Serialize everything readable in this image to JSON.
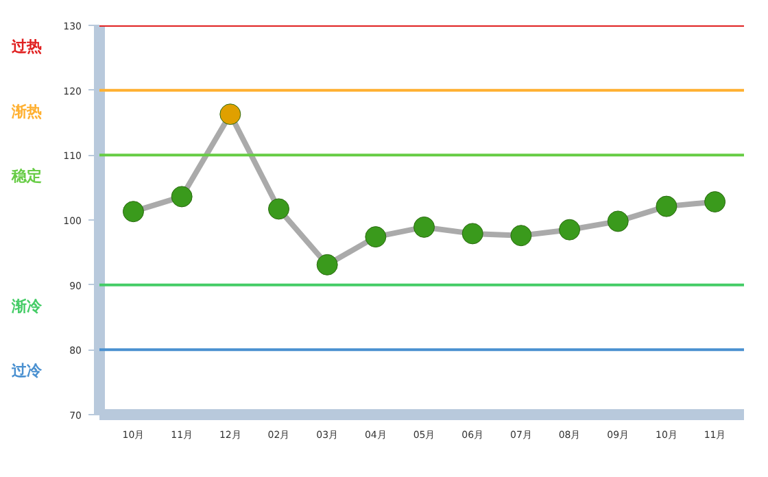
{
  "chart_data": {
    "type": "line",
    "categories": [
      "10月",
      "11月",
      "12月",
      "02月",
      "03月",
      "04月",
      "05月",
      "06月",
      "07月",
      "08月",
      "09月",
      "10月",
      "11月"
    ],
    "series": [
      {
        "color": "#aaaaaa",
        "colors": [
          "#3a9a1c",
          "#3a9a1c",
          "#e0a000",
          "#3a9a1c",
          "#3a9a1c",
          "#3a9a1c",
          "#3a9a1c",
          "#3a9a1c",
          "#3a9a1c",
          "#3a9a1c",
          "#3a9a1c",
          "#3a9a1c",
          "#3a9a1c"
        ],
        "values": [
          101.3,
          103.6,
          116.3,
          101.7,
          93.1,
          97.4,
          98.9,
          97.9,
          97.6,
          98.5,
          99.8,
          102.1,
          102.8
        ]
      }
    ],
    "ylim": [
      70,
      130
    ],
    "yticks": [
      70,
      80,
      90,
      100,
      110,
      120,
      130
    ],
    "marker": "circle",
    "grid": false,
    "ref_lines": [
      {
        "axis": "y",
        "value": 130,
        "label": "过热",
        "color": "#e02020"
      },
      {
        "axis": "y",
        "value": 120,
        "label": "渐热",
        "color": "#ffb030"
      },
      {
        "axis": "y",
        "value": 110,
        "label": "稳定",
        "color": "#66cc44"
      },
      {
        "axis": "y",
        "value": 90,
        "label": "渐冷",
        "color": "#44cc66"
      },
      {
        "axis": "y",
        "value": 80,
        "label": "过冷",
        "color": "#4a90d0"
      }
    ]
  }
}
